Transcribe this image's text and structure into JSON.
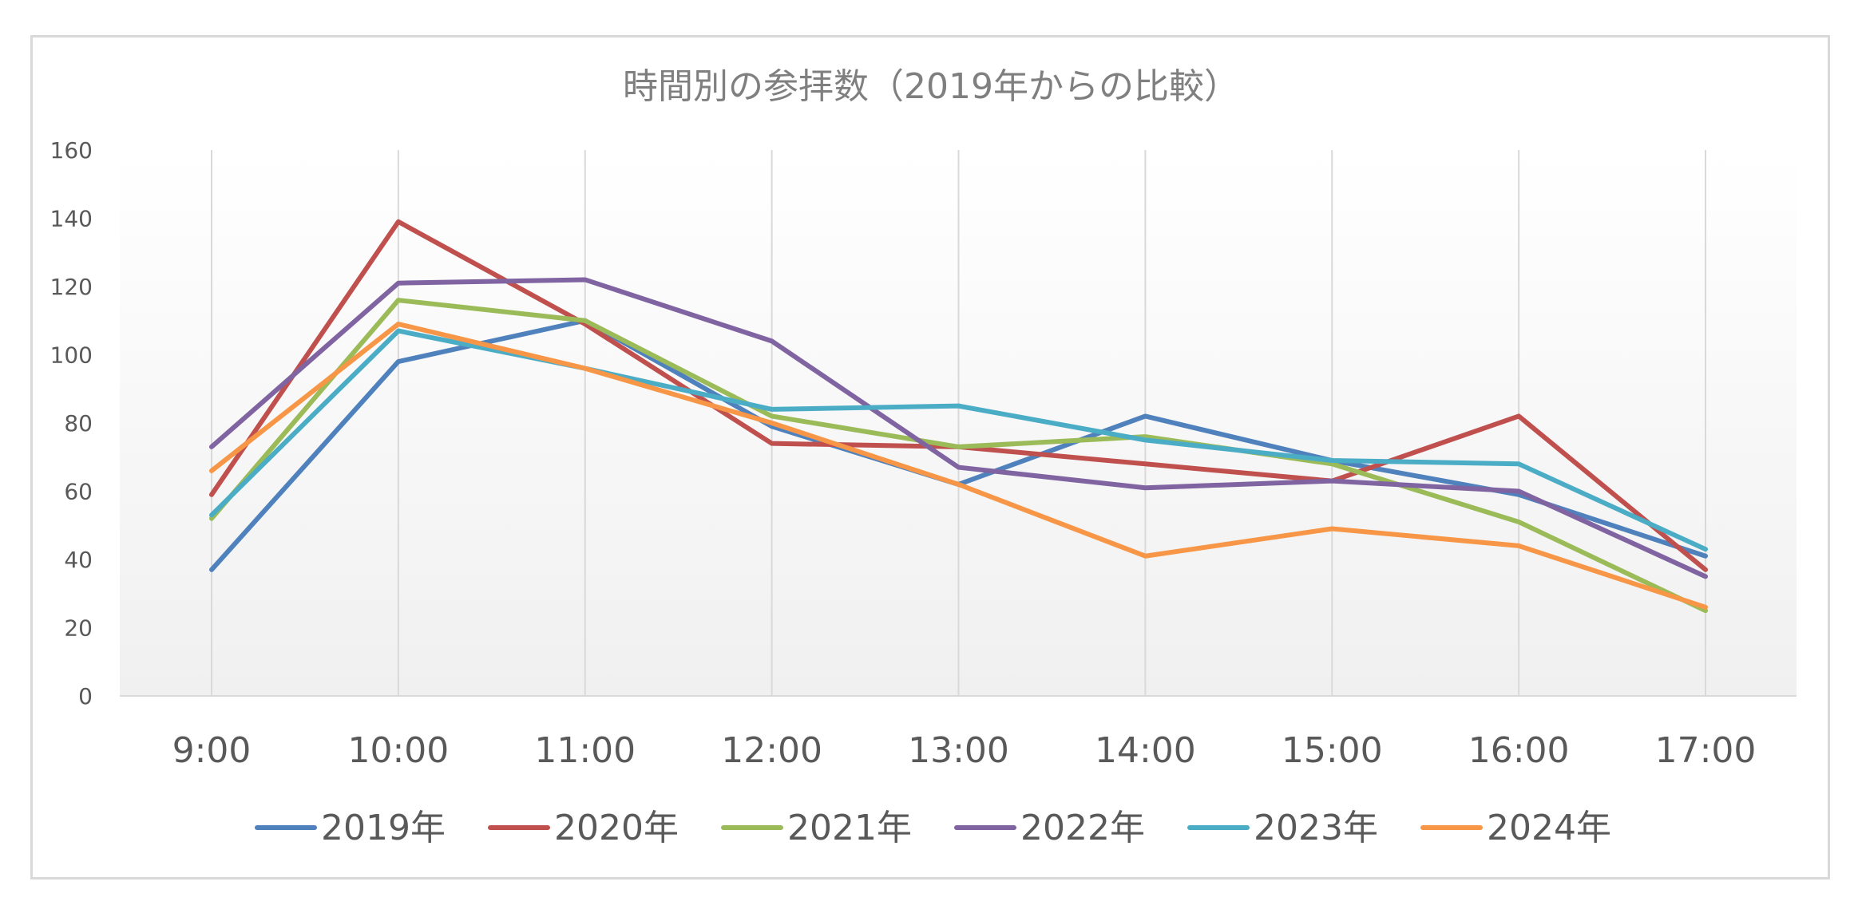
{
  "chart_data": {
    "type": "line",
    "title": "時間別の参拝数（2019年からの比較）",
    "xlabel": "",
    "ylabel": "",
    "categories": [
      "9:00",
      "10:00",
      "11:00",
      "12:00",
      "13:00",
      "14:00",
      "15:00",
      "16:00",
      "17:00"
    ],
    "ylim": [
      0,
      160
    ],
    "yticks": [
      0,
      20,
      40,
      60,
      80,
      100,
      120,
      140,
      160
    ],
    "grid": "vertical",
    "legend_position": "bottom",
    "series": [
      {
        "name": "2019年",
        "color": "#4f81bd",
        "values": [
          37,
          98,
          110,
          79,
          62,
          82,
          69,
          59,
          41
        ]
      },
      {
        "name": "2020年",
        "color": "#c0504d",
        "values": [
          59,
          139,
          109,
          74,
          73,
          68,
          63,
          82,
          37
        ]
      },
      {
        "name": "2021年",
        "color": "#9bbb59",
        "values": [
          52,
          116,
          110,
          82,
          73,
          76,
          68,
          51,
          25
        ]
      },
      {
        "name": "2022年",
        "color": "#8064a2",
        "values": [
          73,
          121,
          122,
          104,
          67,
          61,
          63,
          60,
          35
        ]
      },
      {
        "name": "2023年",
        "color": "#4bacc6",
        "values": [
          53,
          107,
          96,
          84,
          85,
          75,
          69,
          68,
          43
        ]
      },
      {
        "name": "2024年",
        "color": "#f79646",
        "values": [
          66,
          109,
          96,
          80,
          62,
          41,
          49,
          44,
          26
        ]
      }
    ]
  }
}
